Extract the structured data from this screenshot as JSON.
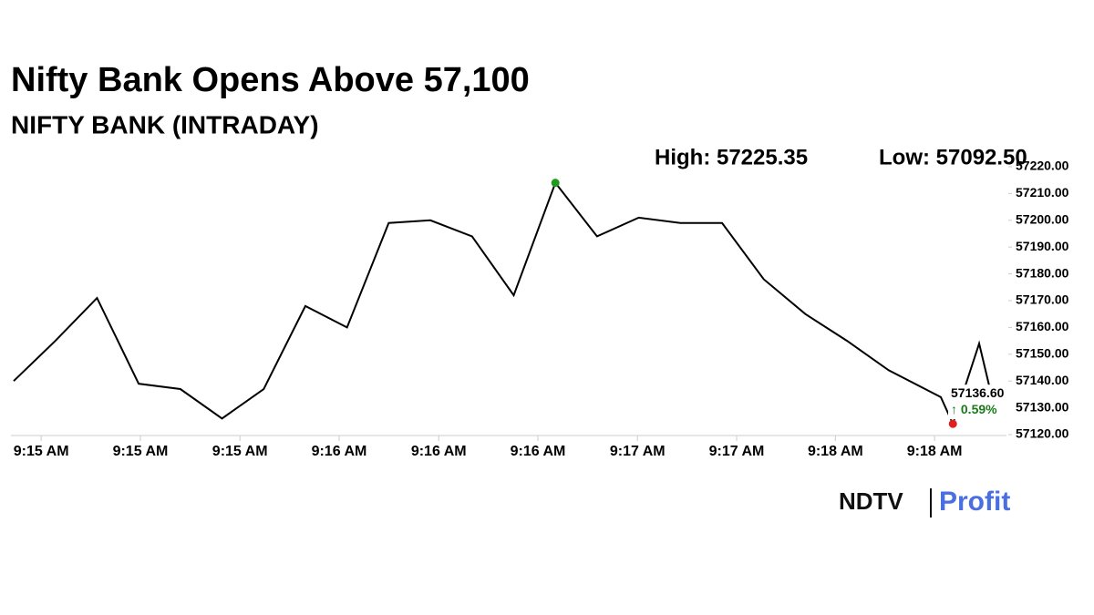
{
  "chart_data": {
    "type": "line",
    "title": "Nifty Bank Opens Above 57,100",
    "subtitle": "NIFTY BANK (INTRADAY)",
    "high_text": "High: 57225.35",
    "low_text": "Low: 57092.50",
    "x": [
      0,
      1,
      2,
      3,
      4,
      5,
      6,
      7,
      8,
      9,
      10,
      11,
      12,
      13,
      14,
      15,
      16,
      17,
      18,
      19,
      20,
      21,
      22.25,
      22.54,
      23.17,
      23.46,
      23.76
    ],
    "series": [
      {
        "name": "NIFTY BANK",
        "color": "#000000",
        "values": [
          57140,
          57155,
          57171,
          57139,
          57137,
          57126,
          57137,
          57168,
          57160,
          57199,
          57200,
          57194,
          57172,
          57214,
          57194,
          57201,
          57199,
          57199,
          57178,
          57165,
          57155,
          57144,
          57134,
          57124,
          57154,
          57135,
          57136.6
        ],
        "markers": [
          null,
          null,
          null,
          null,
          null,
          null,
          null,
          null,
          null,
          null,
          null,
          null,
          null,
          "#1e9a1e",
          null,
          null,
          null,
          null,
          null,
          null,
          null,
          null,
          null,
          "#e0201e",
          null,
          null,
          "#1a1aa8"
        ],
        "value_labels": [
          null,
          null,
          null,
          null,
          null,
          null,
          null,
          null,
          null,
          null,
          null,
          null,
          null,
          null,
          null,
          null,
          null,
          null,
          null,
          null,
          null,
          null,
          null,
          null,
          null,
          null,
          "57136.60"
        ]
      }
    ],
    "change_label": "↑ 0.59%",
    "change_color": "#1a7a1a",
    "xlim": [
      0,
      23.76
    ],
    "xticks": [
      {
        "value": 0.66,
        "label": "9:15 AM"
      },
      {
        "value": 3.04,
        "label": "9:15 AM"
      },
      {
        "value": 5.43,
        "label": "9:15 AM"
      },
      {
        "value": 7.81,
        "label": "9:16 AM"
      },
      {
        "value": 10.2,
        "label": "9:16 AM"
      },
      {
        "value": 12.58,
        "label": "9:16 AM"
      },
      {
        "value": 14.97,
        "label": "9:17 AM"
      },
      {
        "value": 17.35,
        "label": "9:17 AM"
      },
      {
        "value": 19.72,
        "label": "9:18 AM"
      },
      {
        "value": 22.1,
        "label": "9:18 AM"
      }
    ],
    "ylim": [
      57120,
      57220
    ],
    "yticks": [
      {
        "value": 57120,
        "label": "57120.00"
      },
      {
        "value": 57130,
        "label": "57130.00"
      },
      {
        "value": 57140,
        "label": "57140.00"
      },
      {
        "value": 57150,
        "label": "57150.00"
      },
      {
        "value": 57160,
        "label": "57160.00"
      },
      {
        "value": 57170,
        "label": "57170.00"
      },
      {
        "value": 57180,
        "label": "57180.00"
      },
      {
        "value": 57190,
        "label": "57190.00"
      },
      {
        "value": 57200,
        "label": "57200.00"
      },
      {
        "value": 57210,
        "label": "57210.00"
      },
      {
        "value": 57220,
        "label": "57220.00"
      }
    ],
    "grid": false,
    "brand": {
      "left": "NDTV",
      "right": "Profit"
    }
  }
}
